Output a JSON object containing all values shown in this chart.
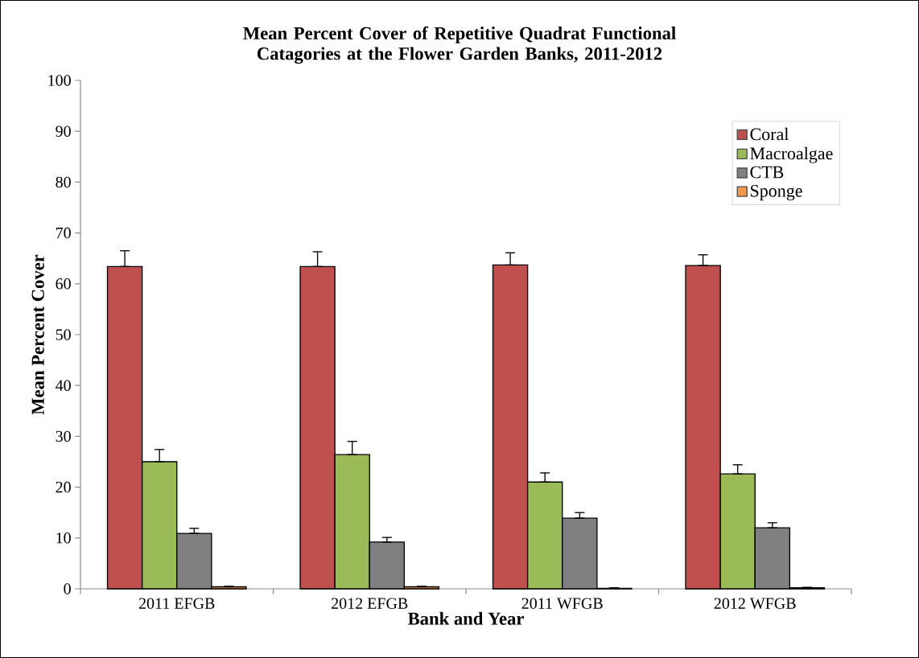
{
  "chart_data": {
    "type": "bar",
    "title": "Mean Percent Cover of Repetitive Quadrat Functional Catagories at the Flower Garden Banks, 2011-2012",
    "xlabel": "Bank and Year",
    "ylabel": "Mean Percent Cover",
    "categories": [
      "2011 EFGB",
      "2012 EFGB",
      "2011 WFGB",
      "2012 WFGB"
    ],
    "series": [
      {
        "name": "Coral",
        "color": "#c0504d",
        "values": [
          63.4,
          63.4,
          63.7,
          63.6
        ],
        "errors": [
          [
            63.4,
            66.5
          ],
          [
            63.4,
            66.3
          ],
          [
            63.7,
            66.1
          ],
          [
            63.6,
            65.7
          ]
        ]
      },
      {
        "name": "Macroalgae",
        "color": "#9bbb59",
        "values": [
          25.0,
          26.4,
          21.0,
          22.6
        ],
        "errors": [
          [
            25.0,
            27.4
          ],
          [
            26.4,
            29.0
          ],
          [
            21.0,
            22.8
          ],
          [
            22.6,
            24.4
          ]
        ]
      },
      {
        "name": "CTB",
        "color": "#808080",
        "values": [
          10.9,
          9.2,
          13.9,
          12.0
        ],
        "errors": [
          [
            10.9,
            11.9
          ],
          [
            9.2,
            10.1
          ],
          [
            13.9,
            15.0
          ],
          [
            12.0,
            13.0
          ]
        ]
      },
      {
        "name": "Sponge",
        "color": "#f79646",
        "values": [
          0.4,
          0.4,
          0.1,
          0.2
        ],
        "errors": [
          [
            0.4,
            0.5
          ],
          [
            0.4,
            0.5
          ],
          [
            0.1,
            0.2
          ],
          [
            0.2,
            0.3
          ]
        ]
      }
    ],
    "ylim": [
      0,
      100
    ],
    "yticks": [
      0,
      10,
      20,
      30,
      40,
      50,
      60,
      70,
      80,
      90,
      100
    ],
    "grid": false,
    "legend": "top right"
  }
}
